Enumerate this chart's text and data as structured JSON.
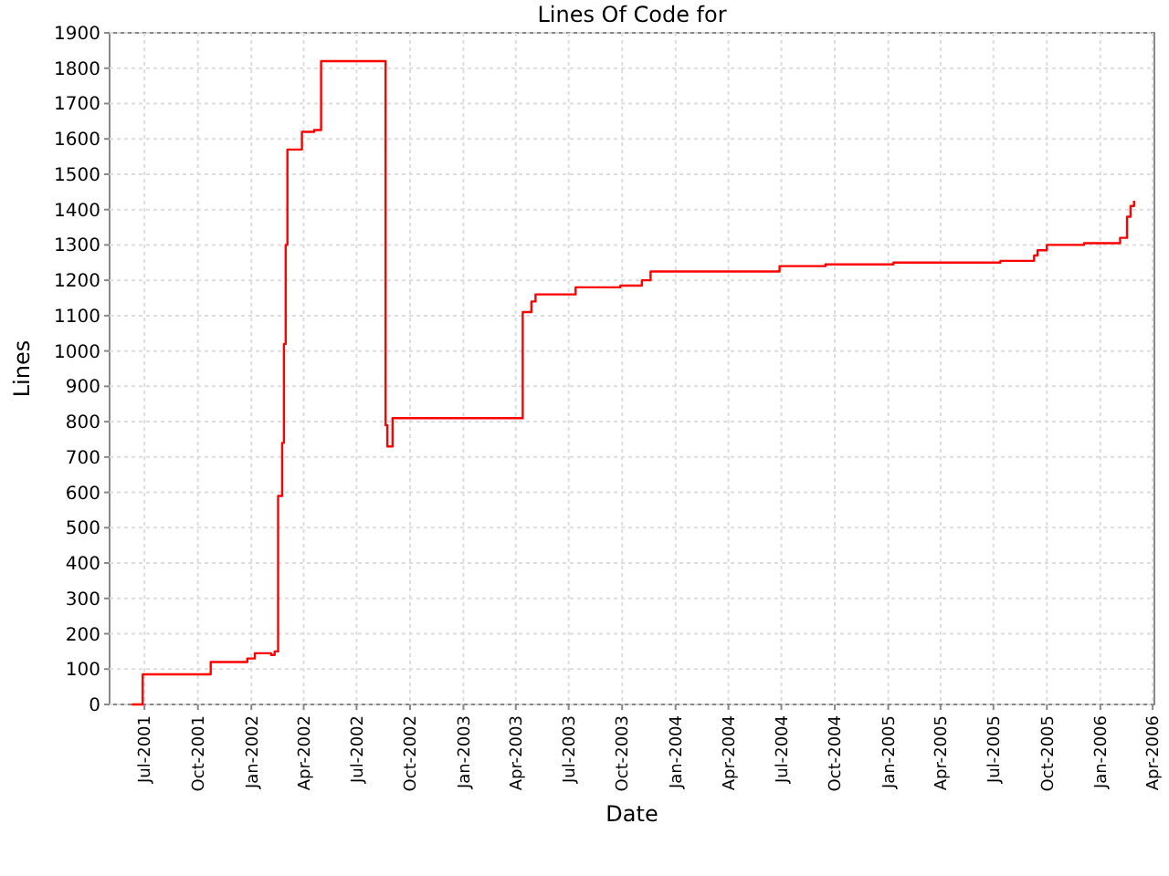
{
  "chart_data": {
    "type": "step",
    "title": "Lines Of Code for",
    "xlabel": "Date",
    "ylabel": "Lines",
    "x": [
      "2001-06-09",
      "2001-06-28",
      "2001-10-23",
      "2001-12-25",
      "2002-01-07",
      "2002-02-04",
      "2002-02-10",
      "2002-02-16",
      "2002-02-23",
      "2002-02-26",
      "2002-03-01",
      "2002-03-04",
      "2002-03-29",
      "2002-04-19",
      "2002-05-01",
      "2002-08-20",
      "2002-08-23",
      "2002-09-01",
      "2003-04-13",
      "2003-04-28",
      "2003-05-05",
      "2003-07-13",
      "2003-09-28",
      "2003-11-04",
      "2003-11-19",
      "2004-06-28",
      "2004-09-15",
      "2005-01-10",
      "2005-07-13",
      "2005-09-09",
      "2005-09-15",
      "2005-10-01",
      "2005-12-04",
      "2006-02-04",
      "2006-02-16",
      "2006-02-22",
      "2006-02-28"
    ],
    "series": [
      {
        "color": "#ff0000",
        "values": [
          0,
          85,
          120,
          130,
          145,
          140,
          150,
          590,
          740,
          1020,
          1300,
          1570,
          1620,
          1625,
          1820,
          790,
          730,
          810,
          1110,
          1140,
          1160,
          1180,
          1185,
          1200,
          1225,
          1240,
          1245,
          1250,
          1255,
          1270,
          1285,
          1300,
          1305,
          1320,
          1380,
          1410,
          1425
        ]
      }
    ],
    "xlim": [
      "2001-05-02",
      "2006-04-04"
    ],
    "xticks": [
      {
        "value": "2001-07-01",
        "label": "Jul-2001"
      },
      {
        "value": "2001-10-01",
        "label": "Oct-2001"
      },
      {
        "value": "2002-01-01",
        "label": "Jan-2002"
      },
      {
        "value": "2002-04-01",
        "label": "Apr-2002"
      },
      {
        "value": "2002-07-01",
        "label": "Jul-2002"
      },
      {
        "value": "2002-10-01",
        "label": "Oct-2002"
      },
      {
        "value": "2003-01-01",
        "label": "Jan-2003"
      },
      {
        "value": "2003-04-01",
        "label": "Apr-2003"
      },
      {
        "value": "2003-07-01",
        "label": "Jul-2003"
      },
      {
        "value": "2003-10-01",
        "label": "Oct-2003"
      },
      {
        "value": "2004-01-01",
        "label": "Jan-2004"
      },
      {
        "value": "2004-04-01",
        "label": "Apr-2004"
      },
      {
        "value": "2004-07-01",
        "label": "Jul-2004"
      },
      {
        "value": "2004-10-01",
        "label": "Oct-2004"
      },
      {
        "value": "2005-01-01",
        "label": "Jan-2005"
      },
      {
        "value": "2005-04-01",
        "label": "Apr-2005"
      },
      {
        "value": "2005-07-01",
        "label": "Jul-2005"
      },
      {
        "value": "2005-10-01",
        "label": "Oct-2005"
      },
      {
        "value": "2006-01-01",
        "label": "Jan-2006"
      },
      {
        "value": "2006-04-01",
        "label": "Apr-2006"
      }
    ],
    "ylim": [
      0,
      1900
    ],
    "yticks": [
      0,
      100,
      200,
      300,
      400,
      500,
      600,
      700,
      800,
      900,
      1000,
      1100,
      1200,
      1300,
      1400,
      1500,
      1600,
      1700,
      1800,
      1900
    ],
    "grid": true
  }
}
